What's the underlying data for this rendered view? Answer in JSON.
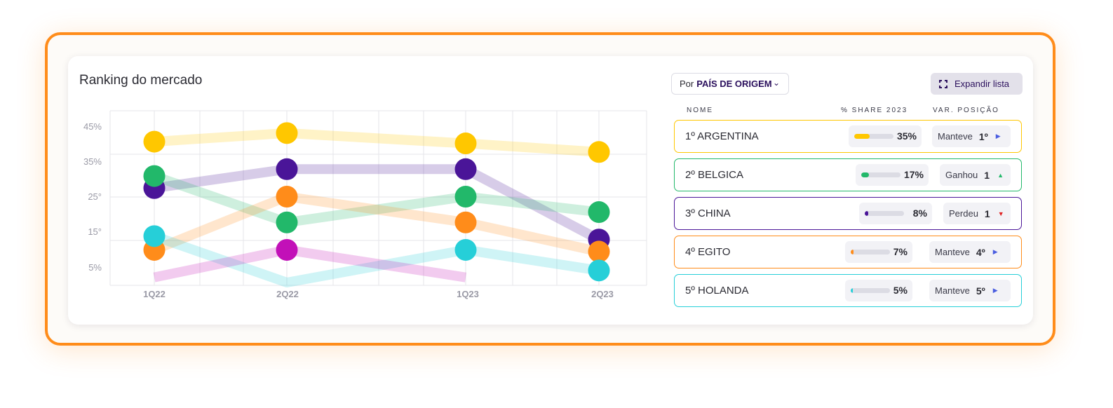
{
  "card": {
    "title": "Ranking do mercado"
  },
  "filter": {
    "prefix": "Por",
    "selected": "PAÍS DE ORIGEM",
    "icon": "chevron-down-icon"
  },
  "expand_button": {
    "label": "Expandir lista",
    "icon": "expand-icon"
  },
  "columns": {
    "name": "NOME",
    "share": "% SHARE 2023",
    "variation": "VAR. POSIÇÃO"
  },
  "ranking": [
    {
      "label": "1º ARGENTINA",
      "share": 35,
      "share_label": "35%",
      "var_text": "Manteve",
      "var_value": "1º",
      "var_icon": "arrow-right-icon",
      "color": "#ffc700",
      "arrow_color": "#4a5de0"
    },
    {
      "label": "2º BELGICA",
      "share": 17,
      "share_label": "17%",
      "var_text": "Ganhou",
      "var_value": "1",
      "var_icon": "arrow-up-icon",
      "color": "#22b86a",
      "arrow_color": "#22b86a"
    },
    {
      "label": "3º CHINA",
      "share": 8,
      "share_label": "8%",
      "var_text": "Perdeu",
      "var_value": "1",
      "var_icon": "arrow-down-icon",
      "color": "#4a1598",
      "arrow_color": "#e02020"
    },
    {
      "label": "4º EGITO",
      "share": 7,
      "share_label": "7%",
      "var_text": "Manteve",
      "var_value": "4º",
      "var_icon": "arrow-right-icon",
      "color": "#ff8c1a",
      "arrow_color": "#4a5de0"
    },
    {
      "label": "5º HOLANDA",
      "share": 5,
      "share_label": "5%",
      "var_text": "Manteve",
      "var_value": "5º",
      "var_icon": "arrow-right-icon",
      "color": "#26cfd8",
      "arrow_color": "#4a5de0"
    }
  ],
  "chart_data": {
    "type": "line",
    "x": [
      "1Q22",
      "2Q22",
      "1Q23",
      "2Q23"
    ],
    "y_ticks": [
      "45%",
      "35%",
      "25°",
      "15°",
      "5%"
    ],
    "ylim": [
      0,
      50
    ],
    "grid": true,
    "legend": "none",
    "series": [
      {
        "color": "#ffc700",
        "values": [
          41,
          43.5,
          40.5,
          38
        ]
      },
      {
        "color": "#4a1598",
        "values": [
          27.5,
          33,
          33,
          12.5
        ]
      },
      {
        "color": "#22b86a",
        "values": [
          31,
          17.5,
          25,
          20.5
        ]
      },
      {
        "color": "#ff8c1a",
        "values": [
          9.5,
          25,
          17.5,
          9
        ]
      },
      {
        "color": "#26cfd8",
        "values": [
          13.5,
          0,
          9.5,
          3.5
        ]
      },
      {
        "color": "#c210b8",
        "values": [
          1.5,
          9.5,
          null,
          null
        ],
        "tail": 1.5
      }
    ]
  }
}
